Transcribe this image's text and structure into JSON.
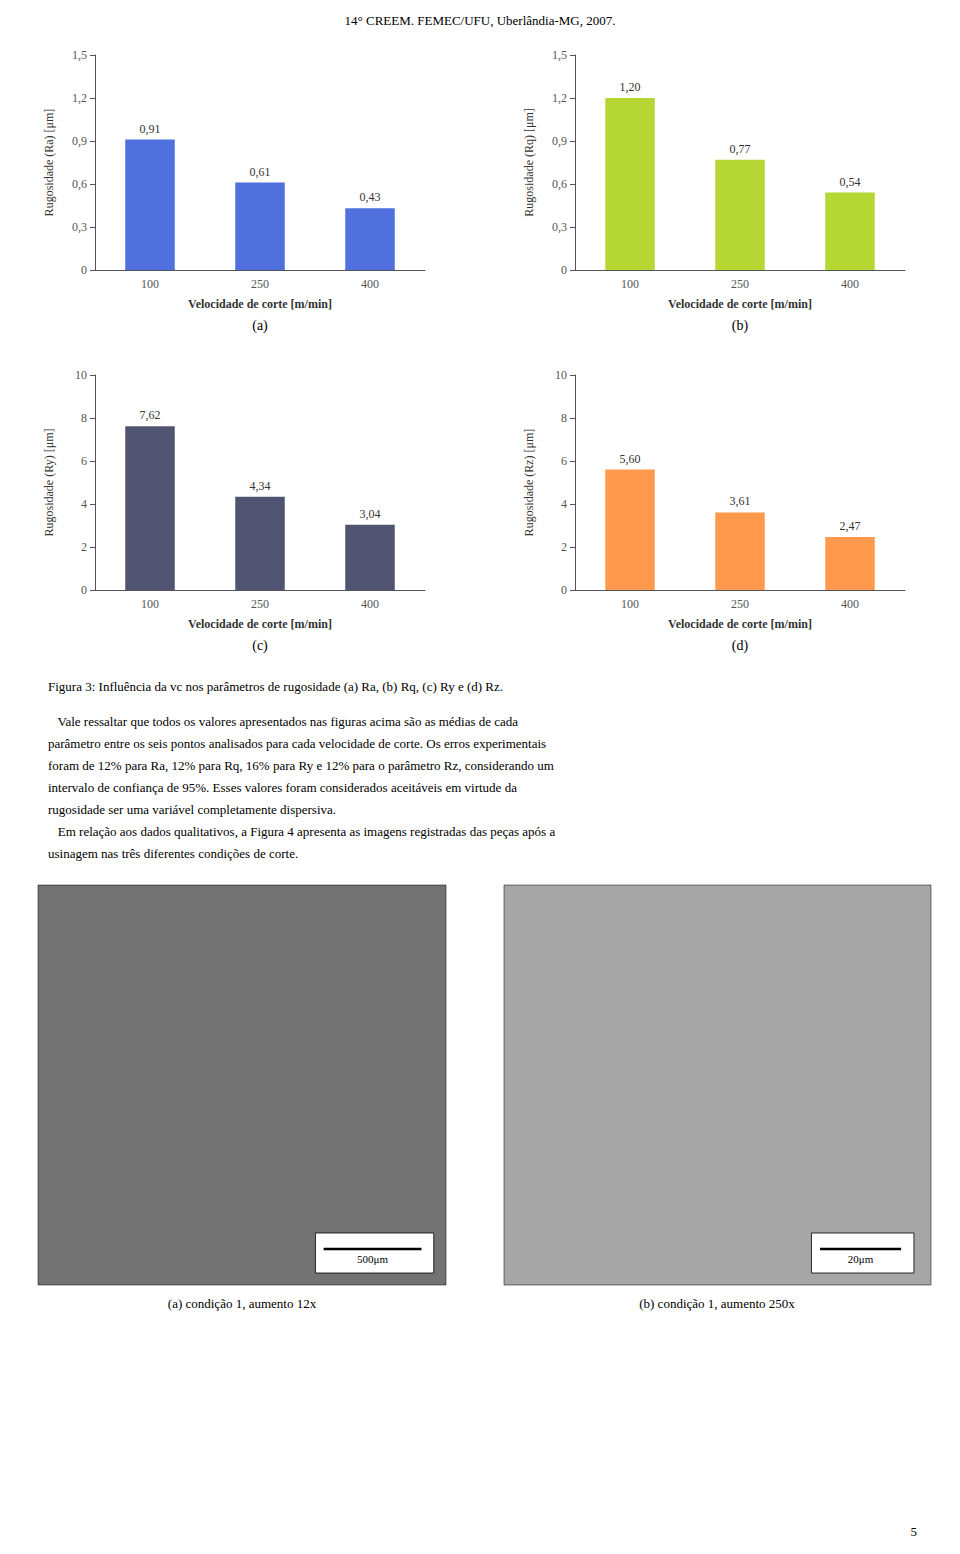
{
  "title": "14° CREEM. FEMEC/UFU, Uberlândia-MG, 2007.",
  "chart_data": [
    {
      "type": "bar",
      "title": "(a)",
      "ylabel": "Rugosidade (Ra) [μm]",
      "xlabel": "Velocidade de corte [m/min]",
      "categories": [
        "100",
        "250",
        "400"
      ],
      "values": [
        0.91,
        0.61,
        0.43
      ],
      "value_labels": [
        "0,91",
        "0,61",
        "0,43"
      ],
      "data_labels": true,
      "grid": false,
      "ylim": [
        0,
        1.5
      ],
      "yticks": [
        0,
        {
          "value": 0.3,
          "label": "0,3"
        },
        {
          "value": 0.6,
          "label": "0,6"
        },
        {
          "value": 0.9,
          "label": "0,9"
        },
        {
          "value": 1.2,
          "label": "1,2"
        },
        {
          "value": 1.5,
          "label": "1,5"
        }
      ]
    },
    {
      "type": "bar",
      "title": "(b)",
      "ylabel": "Rugosidade (Rq) [μm]",
      "xlabel": "Velocidade de corte [m/min]",
      "categories": [
        "100",
        "250",
        "400"
      ],
      "values": [
        1.2,
        0.77,
        0.54
      ],
      "value_labels": [
        "1,20",
        "0,77",
        "0,54"
      ],
      "data_labels": true,
      "grid": false,
      "ylim": [
        0,
        1.5
      ],
      "yticks": [
        0,
        {
          "value": 0.3,
          "label": "0,3"
        },
        {
          "value": 0.6,
          "label": "0,6"
        },
        {
          "value": 0.9,
          "label": "0,9"
        },
        {
          "value": 1.2,
          "label": "1,2"
        },
        {
          "value": 1.5,
          "label": "1,5"
        }
      ]
    },
    {
      "type": "bar",
      "title": "(c)",
      "ylabel": "Rugosidade (Ry) [μm]",
      "xlabel": "Velocidade de corte [m/min]",
      "categories": [
        "100",
        "250",
        "400"
      ],
      "values": [
        7.62,
        4.34,
        3.04
      ],
      "value_labels": [
        "7,62",
        "4,34",
        "3,04"
      ],
      "data_labels": true,
      "grid": false,
      "ylim": [
        0,
        10
      ],
      "yticks": [
        0,
        2,
        4,
        6,
        8,
        10
      ]
    },
    {
      "type": "bar",
      "title": "(d)",
      "ylabel": "Rugosidade (Rz) [μm]",
      "xlabel": "Velocidade de corte [m/min]",
      "categories": [
        "100",
        "250",
        "400"
      ],
      "values": [
        5.6,
        3.61,
        2.47
      ],
      "value_labels": [
        "5,60",
        "3,61",
        "2,47"
      ],
      "data_labels": true,
      "grid": false,
      "ylim": [
        0,
        10
      ],
      "yticks": [
        0,
        2,
        4,
        6,
        8,
        10
      ]
    }
  ],
  "annotations": [
    "Figura 3: Influência da vc nos parâmetros de rugosidade (a) Ra, (b) Rq, (c) Ry e (d) Rz.",
    "   Vale ressaltar que todos os valores apresentados nas figuras acima são as médias de cada",
    "parâmetro entre os seis pontos analisados para cada velocidade de corte. Os erros experimentais",
    "foram de 12% para Ra, 12% para Rq, 16% para Ry e 12% para o parâmetro Rz, considerando um",
    "intervalo de confiança de 95%. Esses valores foram considerados aceitáveis em virtude da",
    "rugosidade ser uma variável completamente dispersiva.",
    "   Em relação aos dados qualitativos, a Figura 4 apresenta as imagens registradas das peças após a",
    "usinagem nas três diferentes condições de corte.",
    "500μm",
    "20μm",
    "(a) condição 1, aumento 12x",
    "(b) condição 1, aumento 250x",
    "5"
  ]
}
